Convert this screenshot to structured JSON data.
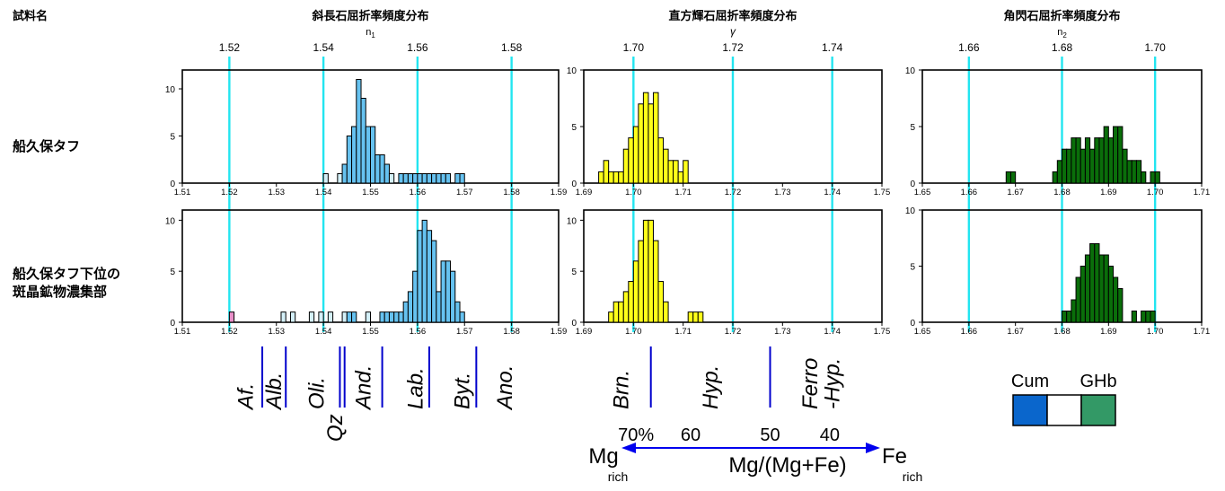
{
  "figure": {
    "sample_label": "試料名",
    "rows": [
      {
        "label_lines": [
          "船久保タフ"
        ]
      },
      {
        "label_lines": [
          "船久保タフ下位の",
          "斑晶鉱物濃集部"
        ]
      }
    ]
  },
  "chart_data": [
    {
      "type": "bar",
      "mineral": "plagioclase",
      "title": "斜長石屈折率頻度分布",
      "subtitle": "n1",
      "subtitle_main": "n",
      "subtitle_sub": "1",
      "xlim": [
        1.51,
        1.59
      ],
      "bin_width": 0.001,
      "x_ticks": [
        1.51,
        1.52,
        1.53,
        1.54,
        1.55,
        1.56,
        1.57,
        1.58,
        1.59
      ],
      "x_tick_labels": [
        "1.51",
        "1.52",
        "1.53",
        "1.54",
        "1.55",
        "1.56",
        "1.57",
        "1.58",
        "1.59"
      ],
      "top_ticks": [
        1.52,
        1.54,
        1.56,
        1.58
      ],
      "top_tick_labels": [
        "1.52",
        "1.54",
        "1.56",
        "1.58"
      ],
      "reference_lines": [
        1.52,
        1.54,
        1.56,
        1.58
      ],
      "color": "#66c2f0",
      "series": [
        {
          "name": "船久保タフ",
          "ylim": [
            0,
            12
          ],
          "y_ticks": [
            0,
            5,
            10
          ],
          "y_tick_labels": [
            "0",
            "5",
            "10"
          ],
          "bins": [
            {
              "x": 1.54,
              "count": 1,
              "fill": "#d4f0f8"
            },
            {
              "x": 1.543,
              "count": 1,
              "fill": "#d4f0f8"
            },
            {
              "x": 1.544,
              "count": 2
            },
            {
              "x": 1.545,
              "count": 5
            },
            {
              "x": 1.546,
              "count": 6
            },
            {
              "x": 1.547,
              "count": 11
            },
            {
              "x": 1.548,
              "count": 9
            },
            {
              "x": 1.549,
              "count": 6
            },
            {
              "x": 1.55,
              "count": 6
            },
            {
              "x": 1.551,
              "count": 3
            },
            {
              "x": 1.552,
              "count": 3
            },
            {
              "x": 1.553,
              "count": 2
            },
            {
              "x": 1.554,
              "count": 1,
              "fill": "#d4f0f8"
            },
            {
              "x": 1.556,
              "count": 1
            },
            {
              "x": 1.557,
              "count": 1
            },
            {
              "x": 1.558,
              "count": 1
            },
            {
              "x": 1.559,
              "count": 1
            },
            {
              "x": 1.56,
              "count": 1
            },
            {
              "x": 1.561,
              "count": 1
            },
            {
              "x": 1.562,
              "count": 1
            },
            {
              "x": 1.563,
              "count": 1
            },
            {
              "x": 1.564,
              "count": 1
            },
            {
              "x": 1.565,
              "count": 1
            },
            {
              "x": 1.566,
              "count": 1
            },
            {
              "x": 1.568,
              "count": 1
            },
            {
              "x": 1.569,
              "count": 1
            }
          ]
        },
        {
          "name": "船久保タフ下位の斑晶鉱物濃集部",
          "ylim": [
            0,
            11
          ],
          "y_ticks": [
            0,
            5,
            10
          ],
          "y_tick_labels": [
            "0",
            "5",
            "10"
          ],
          "bins": [
            {
              "x": 1.52,
              "count": 1,
              "fill": "#e88fc8"
            },
            {
              "x": 1.531,
              "count": 1,
              "fill": "#d4f0f8"
            },
            {
              "x": 1.533,
              "count": 1,
              "fill": "#d4f0f8"
            },
            {
              "x": 1.537,
              "count": 1,
              "fill": "#d4f0f8"
            },
            {
              "x": 1.539,
              "count": 1,
              "fill": "#d4f0f8"
            },
            {
              "x": 1.541,
              "count": 1,
              "fill": "#d4f0f8"
            },
            {
              "x": 1.544,
              "count": 1,
              "fill": "#d4f0f8"
            },
            {
              "x": 1.545,
              "count": 1
            },
            {
              "x": 1.546,
              "count": 1
            },
            {
              "x": 1.549,
              "count": 1,
              "fill": "#d4f0f8"
            },
            {
              "x": 1.552,
              "count": 1
            },
            {
              "x": 1.553,
              "count": 1
            },
            {
              "x": 1.554,
              "count": 1
            },
            {
              "x": 1.555,
              "count": 1
            },
            {
              "x": 1.556,
              "count": 1
            },
            {
              "x": 1.557,
              "count": 2
            },
            {
              "x": 1.558,
              "count": 3
            },
            {
              "x": 1.559,
              "count": 5
            },
            {
              "x": 1.56,
              "count": 9
            },
            {
              "x": 1.561,
              "count": 10
            },
            {
              "x": 1.562,
              "count": 9
            },
            {
              "x": 1.563,
              "count": 8
            },
            {
              "x": 1.564,
              "count": 3
            },
            {
              "x": 1.565,
              "count": 6
            },
            {
              "x": 1.566,
              "count": 6
            },
            {
              "x": 1.567,
              "count": 5
            },
            {
              "x": 1.568,
              "count": 2
            },
            {
              "x": 1.569,
              "count": 1
            }
          ]
        }
      ],
      "classification": {
        "labels": [
          {
            "text": "Af.",
            "x": 1.5235
          },
          {
            "text": "Alb.",
            "x": 1.5295
          },
          {
            "text": "Oli.",
            "x": 1.5385
          },
          {
            "text": "Qz",
            "x": 1.5425,
            "low": true
          },
          {
            "text": "And.",
            "x": 1.5485
          },
          {
            "text": "Lab.",
            "x": 1.5595
          },
          {
            "text": "Byt.",
            "x": 1.5695
          },
          {
            "text": "Ano.",
            "x": 1.5785
          }
        ],
        "dividers": [
          1.527,
          1.532,
          1.5435,
          1.5445,
          1.5525,
          1.5625,
          1.5725
        ],
        "color": "#0000cc"
      }
    },
    {
      "type": "bar",
      "mineral": "orthopyroxene",
      "title": "直方輝石屈折率頻度分布",
      "subtitle": "γ",
      "xlim": [
        1.69,
        1.75
      ],
      "bin_width": 0.001,
      "x_ticks": [
        1.69,
        1.7,
        1.71,
        1.72,
        1.73,
        1.74,
        1.75
      ],
      "x_tick_labels": [
        "1.69",
        "1.70",
        "1.71",
        "1.72",
        "1.73",
        "1.74",
        "1.75"
      ],
      "top_ticks": [
        1.7,
        1.72,
        1.74
      ],
      "top_tick_labels": [
        "1.70",
        "1.72",
        "1.74"
      ],
      "reference_lines": [
        1.7,
        1.72,
        1.74
      ],
      "color": "#ffff1a",
      "series": [
        {
          "name": "船久保タフ",
          "ylim": [
            0,
            10
          ],
          "y_ticks": [
            0,
            5,
            10
          ],
          "y_tick_labels": [
            "0",
            "5",
            "10"
          ],
          "bins": [
            {
              "x": 1.693,
              "count": 1
            },
            {
              "x": 1.694,
              "count": 2
            },
            {
              "x": 1.695,
              "count": 1
            },
            {
              "x": 1.696,
              "count": 1
            },
            {
              "x": 1.697,
              "count": 1
            },
            {
              "x": 1.698,
              "count": 3
            },
            {
              "x": 1.699,
              "count": 4
            },
            {
              "x": 1.7,
              "count": 5
            },
            {
              "x": 1.701,
              "count": 7
            },
            {
              "x": 1.702,
              "count": 8
            },
            {
              "x": 1.703,
              "count": 7
            },
            {
              "x": 1.704,
              "count": 8
            },
            {
              "x": 1.705,
              "count": 4
            },
            {
              "x": 1.706,
              "count": 3
            },
            {
              "x": 1.707,
              "count": 2
            },
            {
              "x": 1.708,
              "count": 2
            },
            {
              "x": 1.709,
              "count": 1
            },
            {
              "x": 1.71,
              "count": 2
            }
          ]
        },
        {
          "name": "船久保タフ下位の斑晶鉱物濃集部",
          "ylim": [
            0,
            11
          ],
          "y_ticks": [
            0,
            5,
            10
          ],
          "y_tick_labels": [
            "0",
            "5",
            "10"
          ],
          "bins": [
            {
              "x": 1.695,
              "count": 1
            },
            {
              "x": 1.696,
              "count": 2
            },
            {
              "x": 1.697,
              "count": 2
            },
            {
              "x": 1.698,
              "count": 3
            },
            {
              "x": 1.699,
              "count": 4
            },
            {
              "x": 1.7,
              "count": 6
            },
            {
              "x": 1.701,
              "count": 8
            },
            {
              "x": 1.702,
              "count": 10
            },
            {
              "x": 1.703,
              "count": 10
            },
            {
              "x": 1.704,
              "count": 8
            },
            {
              "x": 1.705,
              "count": 4
            },
            {
              "x": 1.706,
              "count": 2
            },
            {
              "x": 1.711,
              "count": 1
            },
            {
              "x": 1.712,
              "count": 1
            },
            {
              "x": 1.713,
              "count": 1
            }
          ]
        }
      ],
      "classification": {
        "labels": [
          {
            "text": "Brn.",
            "x": 1.6975
          },
          {
            "text": "Hyp.",
            "x": 1.7155
          },
          {
            "text": "Ferro",
            "x": 1.7355
          },
          {
            "text": "-Hyp.",
            "x": 1.74
          }
        ],
        "dividers": [
          1.7035,
          1.7275
        ],
        "color": "#0000cc"
      },
      "composition": {
        "percent_labels": [
          {
            "text": "70%",
            "x": 1.7005
          },
          {
            "text": "60",
            "x": 1.7115
          },
          {
            "text": "50",
            "x": 1.7275
          },
          {
            "text": "40",
            "x": 1.7395
          }
        ],
        "left": "Mg",
        "left_sub": "rich",
        "right": "Fe",
        "right_sub": "rich",
        "center": "Mg/(Mg+Fe)",
        "color": "#0000ee"
      }
    },
    {
      "type": "bar",
      "mineral": "hornblende",
      "title": "角閃石屈折率頻度分布",
      "subtitle": "n2",
      "subtitle_main": "n",
      "subtitle_sub": "2",
      "xlim": [
        1.65,
        1.71
      ],
      "bin_width": 0.001,
      "x_ticks": [
        1.65,
        1.66,
        1.67,
        1.68,
        1.69,
        1.7,
        1.71
      ],
      "x_tick_labels": [
        "1.65",
        "1.66",
        "1.67",
        "1.68",
        "1.69",
        "1.70",
        "1.71"
      ],
      "top_ticks": [
        1.66,
        1.68,
        1.7
      ],
      "top_tick_labels": [
        "1.66",
        "1.68",
        "1.70"
      ],
      "reference_lines": [
        1.66,
        1.68,
        1.7
      ],
      "color": "#0a6e0a",
      "series": [
        {
          "name": "船久保タフ",
          "ylim": [
            0,
            10
          ],
          "y_ticks": [
            0,
            5,
            10
          ],
          "y_tick_labels": [
            "0",
            "5",
            "10"
          ],
          "bins": [
            {
              "x": 1.668,
              "count": 1
            },
            {
              "x": 1.669,
              "count": 1
            },
            {
              "x": 1.678,
              "count": 1
            },
            {
              "x": 1.679,
              "count": 2
            },
            {
              "x": 1.68,
              "count": 3
            },
            {
              "x": 1.681,
              "count": 3
            },
            {
              "x": 1.682,
              "count": 4
            },
            {
              "x": 1.683,
              "count": 4
            },
            {
              "x": 1.684,
              "count": 3
            },
            {
              "x": 1.685,
              "count": 4
            },
            {
              "x": 1.686,
              "count": 3
            },
            {
              "x": 1.687,
              "count": 4
            },
            {
              "x": 1.688,
              "count": 4
            },
            {
              "x": 1.689,
              "count": 5
            },
            {
              "x": 1.69,
              "count": 4
            },
            {
              "x": 1.691,
              "count": 5
            },
            {
              "x": 1.692,
              "count": 5
            },
            {
              "x": 1.693,
              "count": 3
            },
            {
              "x": 1.694,
              "count": 2
            },
            {
              "x": 1.695,
              "count": 2
            },
            {
              "x": 1.696,
              "count": 2
            },
            {
              "x": 1.697,
              "count": 1
            },
            {
              "x": 1.699,
              "count": 1
            },
            {
              "x": 1.7,
              "count": 1
            }
          ]
        },
        {
          "name": "船久保タフ下位の斑晶鉱物濃集部",
          "ylim": [
            0,
            10
          ],
          "y_ticks": [
            0,
            5,
            10
          ],
          "y_tick_labels": [
            "0",
            "5",
            "10"
          ],
          "bins": [
            {
              "x": 1.68,
              "count": 1
            },
            {
              "x": 1.681,
              "count": 1
            },
            {
              "x": 1.682,
              "count": 2
            },
            {
              "x": 1.683,
              "count": 4
            },
            {
              "x": 1.684,
              "count": 5
            },
            {
              "x": 1.685,
              "count": 6
            },
            {
              "x": 1.686,
              "count": 7
            },
            {
              "x": 1.687,
              "count": 7
            },
            {
              "x": 1.688,
              "count": 6
            },
            {
              "x": 1.689,
              "count": 6
            },
            {
              "x": 1.69,
              "count": 5
            },
            {
              "x": 1.691,
              "count": 4
            },
            {
              "x": 1.692,
              "count": 3
            },
            {
              "x": 1.695,
              "count": 1
            },
            {
              "x": 1.697,
              "count": 1
            },
            {
              "x": 1.698,
              "count": 1
            },
            {
              "x": 1.699,
              "count": 1
            }
          ]
        }
      ],
      "legend": {
        "labels": [
          "Cum",
          "GHb"
        ],
        "swatches": [
          "#0a66cc",
          "#ffffff",
          "#339966"
        ]
      }
    }
  ]
}
